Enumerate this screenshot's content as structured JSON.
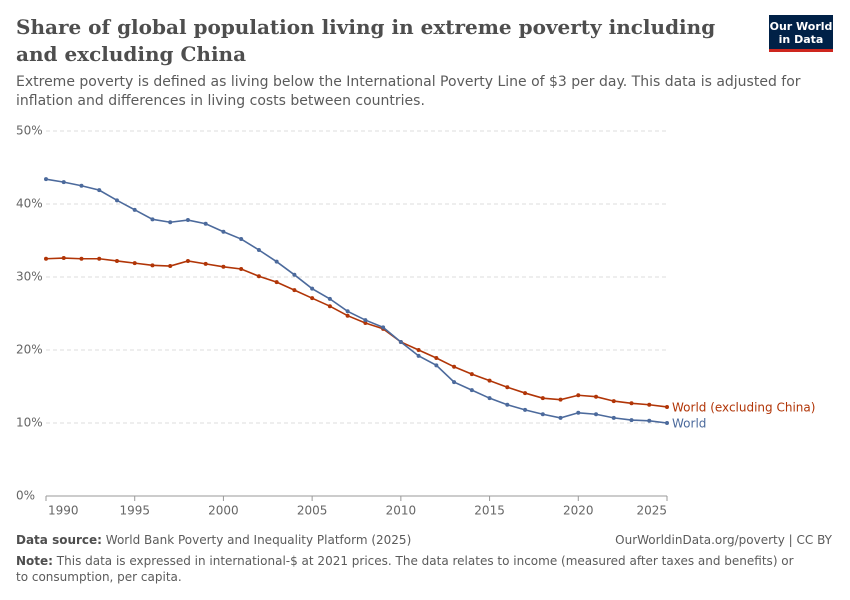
{
  "chart_data": {
    "type": "line",
    "title": "Share of global population living in extreme poverty including and excluding China",
    "subtitle": "Extreme poverty is defined as living below the International Poverty Line of $3 per day. This data is adjusted for inflation and differences in living costs between countries.",
    "logo": [
      "Our World",
      "in Data"
    ],
    "source_label": "Data source:",
    "source": "World Bank Poverty and Inequality Platform (2025)",
    "url": "OurWorldinData.org/poverty | CC BY",
    "note_label": "Note:",
    "note": "This data is expressed in international-$ at 2021 prices. The data relates to income (measured after taxes and benefits) or to consumption, per capita.",
    "x": [
      1990,
      1991,
      1992,
      1993,
      1994,
      1995,
      1996,
      1997,
      1998,
      1999,
      2000,
      2001,
      2002,
      2003,
      2004,
      2005,
      2006,
      2007,
      2008,
      2009,
      2010,
      2011,
      2012,
      2013,
      2014,
      2015,
      2016,
      2017,
      2018,
      2019,
      2020,
      2021,
      2022,
      2023,
      2024,
      2025
    ],
    "xlim": [
      1990,
      2025
    ],
    "xticks": [
      1990,
      1995,
      2000,
      2005,
      2010,
      2015,
      2020,
      2025
    ],
    "ylim": [
      0,
      50
    ],
    "yticks": [
      {
        "value": 0,
        "label": "0%"
      },
      {
        "value": 10,
        "label": "10%"
      },
      {
        "value": 20,
        "label": "20%"
      },
      {
        "value": 30,
        "label": "30%"
      },
      {
        "value": 40,
        "label": "40%"
      },
      {
        "value": 50,
        "label": "50%"
      }
    ],
    "grid": true,
    "series": [
      {
        "name": "World (excluding China)",
        "color": "#b13507",
        "values": [
          32.5,
          32.6,
          32.5,
          32.5,
          32.2,
          31.9,
          31.6,
          31.5,
          32.2,
          31.8,
          31.4,
          31.1,
          30.1,
          29.3,
          28.2,
          27.1,
          26.0,
          24.7,
          23.7,
          22.9,
          21.1,
          20.0,
          18.9,
          17.7,
          16.7,
          15.8,
          14.9,
          14.1,
          13.4,
          13.2,
          13.8,
          13.6,
          13.0,
          12.7,
          12.5,
          12.2
        ]
      },
      {
        "name": "World",
        "color": "#4c6a9c",
        "values": [
          43.4,
          43.0,
          42.5,
          41.9,
          40.5,
          39.2,
          37.9,
          37.5,
          37.8,
          37.3,
          36.2,
          35.2,
          33.7,
          32.1,
          30.3,
          28.4,
          27.0,
          25.3,
          24.1,
          23.1,
          21.1,
          19.2,
          17.9,
          15.6,
          14.5,
          13.4,
          12.5,
          11.8,
          11.2,
          10.7,
          11.4,
          11.2,
          10.7,
          10.4,
          10.3,
          10.0
        ]
      }
    ]
  }
}
